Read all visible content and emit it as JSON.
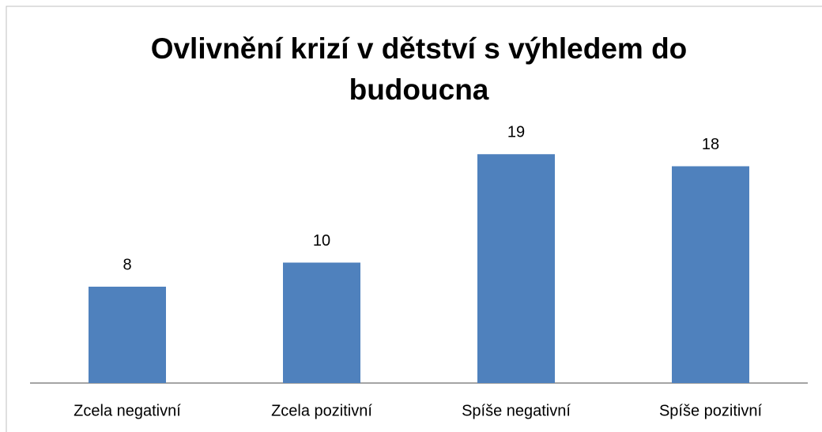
{
  "chart_data": {
    "type": "bar",
    "title": "Ovlivnění krizí v dětství s výhledem do budoucna",
    "categories": [
      "Zcela negativní",
      "Zcela pozitivní",
      "Spíše negativní",
      "Spíše pozitivní"
    ],
    "values": [
      8,
      10,
      19,
      18
    ],
    "color": "#4f81bd",
    "ylim": [
      0,
      20
    ]
  }
}
